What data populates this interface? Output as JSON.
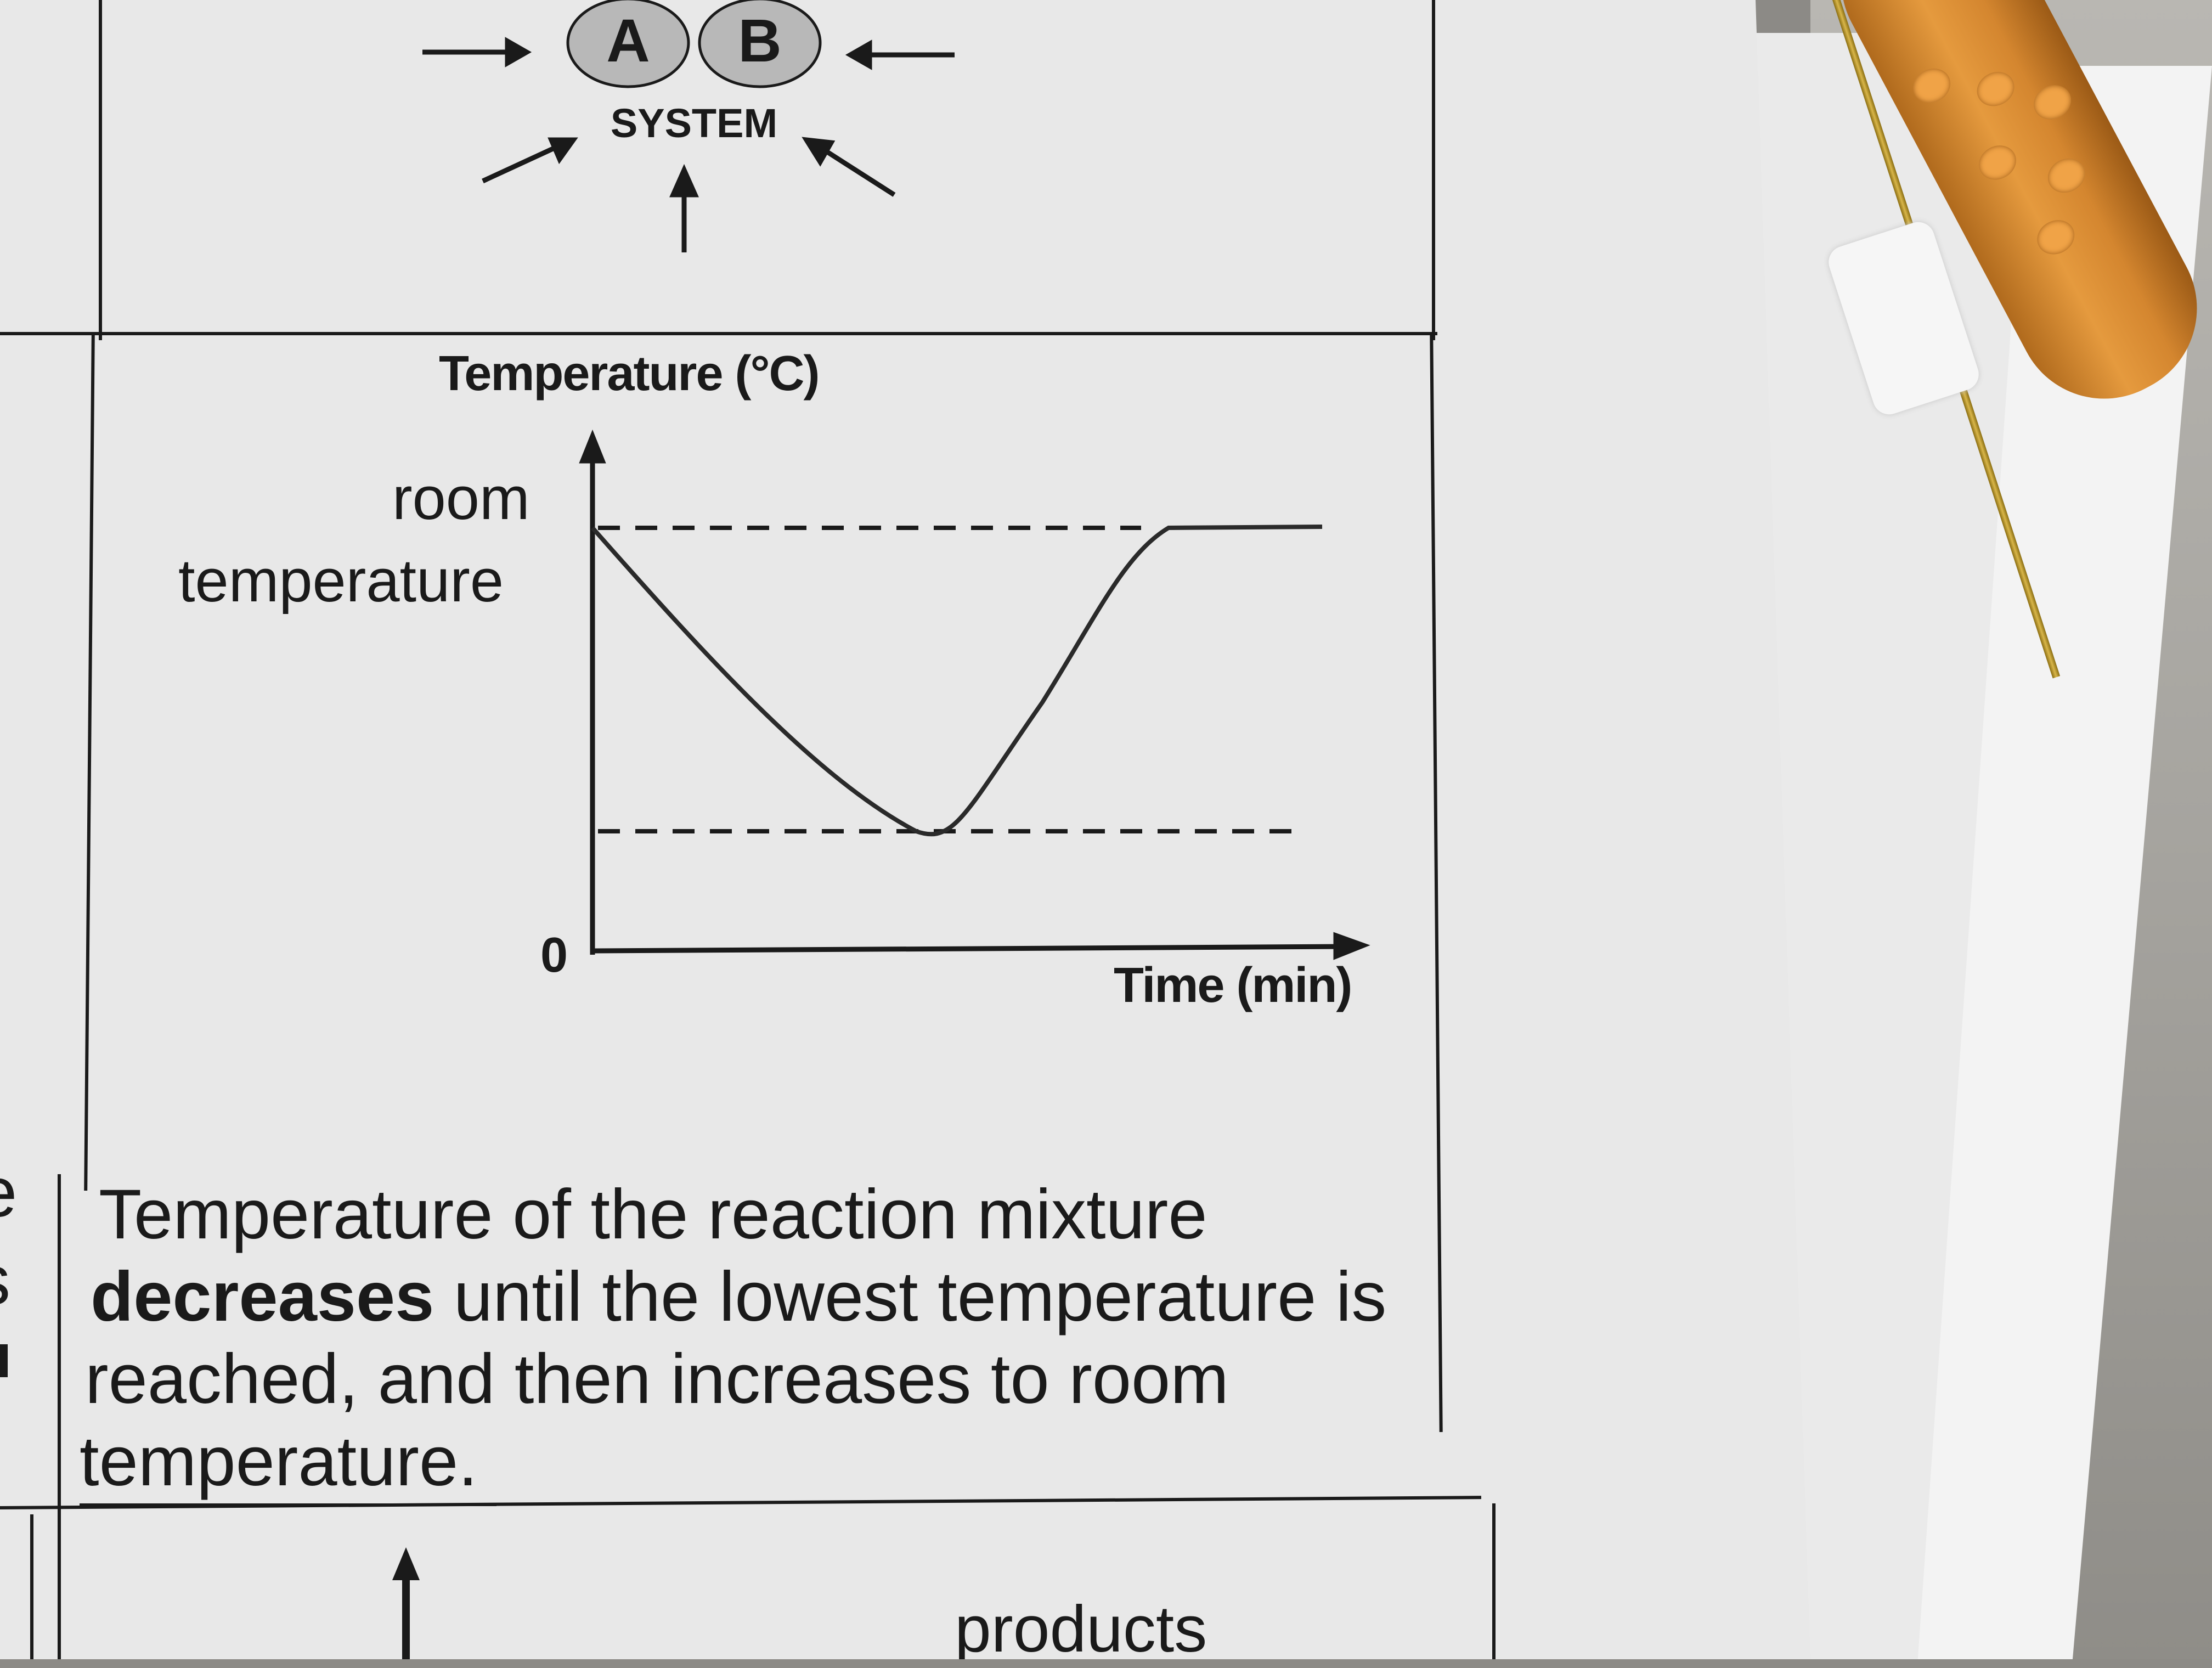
{
  "diagram": {
    "circle_a": "A",
    "circle_b": "B",
    "system_label": "SYSTEM"
  },
  "graph": {
    "y_axis_title": "Temperature (°C)",
    "y_label_line1": "room",
    "y_label_line2": "temperature",
    "origin_label": "0",
    "x_axis_title": "Time (min)"
  },
  "chart_data": {
    "type": "line",
    "title": "",
    "xlabel": "Time (min)",
    "ylabel": "Temperature (°C)",
    "y_tick_labels": [
      "0",
      "room temperature"
    ],
    "series": [
      {
        "values_description_free": true,
        "points_relative": [
          [
            0,
            1.0
          ],
          [
            0.5,
            0.0
          ],
          [
            0.8,
            1.0
          ],
          [
            1.0,
            1.0
          ]
        ]
      }
    ],
    "reference_lines": [
      "room temperature",
      "lowest temperature"
    ],
    "grid": false
  },
  "description": {
    "line1": "Temperature   of   the   reaction   mixture",
    "line2_bold": "decreases",
    "line2_rest": " until the lowest temperature is",
    "line3": "reached,   and   then   increases   to   room",
    "line4": "temperature."
  },
  "next_row": {
    "products_label": "products"
  },
  "left_margin_fragments": [
    "e",
    "s"
  ]
}
